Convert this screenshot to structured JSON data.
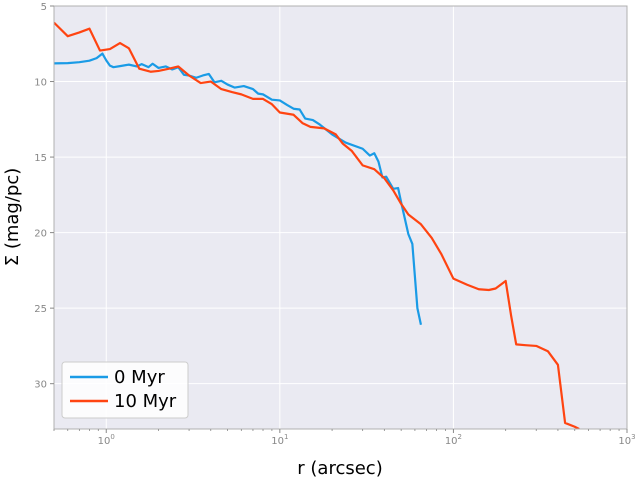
{
  "chart_data": {
    "type": "line",
    "xlabel": "r (arcsec)",
    "ylabel": "Σ (mag/pc)",
    "xscale": "log",
    "yaxis_inverted": true,
    "xlim": [
      0.5,
      1000
    ],
    "ylim": [
      33,
      5
    ],
    "grid": true,
    "background": "#EAEAF2",
    "legend_position": "lower-left",
    "x_tick_labels": [
      {
        "base": "10",
        "exp": "0",
        "value": 1
      },
      {
        "base": "10",
        "exp": "1",
        "value": 10
      },
      {
        "base": "10",
        "exp": "2",
        "value": 100
      },
      {
        "base": "10",
        "exp": "3",
        "value": 1000
      }
    ],
    "y_ticks": [
      5,
      10,
      15,
      20,
      25,
      30
    ],
    "series": [
      {
        "name": "0 Myr",
        "color": "#1A9BE6",
        "points": [
          [
            0.5,
            8.8
          ],
          [
            0.6,
            8.78
          ],
          [
            0.7,
            8.72
          ],
          [
            0.8,
            8.62
          ],
          [
            0.88,
            8.45
          ],
          [
            0.95,
            8.15
          ],
          [
            1.0,
            8.6
          ],
          [
            1.05,
            8.95
          ],
          [
            1.1,
            9.05
          ],
          [
            1.2,
            8.98
          ],
          [
            1.35,
            8.88
          ],
          [
            1.5,
            9.0
          ],
          [
            1.6,
            8.85
          ],
          [
            1.75,
            9.05
          ],
          [
            1.85,
            8.82
          ],
          [
            2.0,
            9.1
          ],
          [
            2.2,
            9.0
          ],
          [
            2.4,
            9.2
          ],
          [
            2.6,
            9.05
          ],
          [
            2.8,
            9.55
          ],
          [
            3.0,
            9.6
          ],
          [
            3.3,
            9.75
          ],
          [
            3.6,
            9.6
          ],
          [
            3.9,
            9.5
          ],
          [
            4.2,
            10.05
          ],
          [
            4.6,
            9.95
          ],
          [
            5.0,
            10.2
          ],
          [
            5.5,
            10.4
          ],
          [
            6.2,
            10.3
          ],
          [
            7.0,
            10.5
          ],
          [
            7.5,
            10.8
          ],
          [
            8.0,
            10.85
          ],
          [
            9.0,
            11.2
          ],
          [
            10.0,
            11.25
          ],
          [
            11.0,
            11.55
          ],
          [
            12.0,
            11.8
          ],
          [
            13.0,
            11.85
          ],
          [
            14.0,
            12.45
          ],
          [
            15.5,
            12.55
          ],
          [
            17.0,
            12.85
          ],
          [
            20.0,
            13.5
          ],
          [
            24.0,
            14.05
          ],
          [
            30.0,
            14.45
          ],
          [
            33.0,
            14.9
          ],
          [
            35.0,
            14.75
          ],
          [
            37.0,
            15.3
          ],
          [
            39.0,
            16.35
          ],
          [
            41.0,
            16.3
          ],
          [
            45.0,
            17.1
          ],
          [
            48.0,
            17.05
          ],
          [
            50.0,
            18.0
          ],
          [
            55.0,
            20.1
          ],
          [
            58.0,
            20.75
          ],
          [
            62.0,
            25.0
          ],
          [
            65.0,
            26.1
          ]
        ]
      },
      {
        "name": "10 Myr",
        "color": "#FF4411",
        "points": [
          [
            0.5,
            6.1
          ],
          [
            0.6,
            7.0
          ],
          [
            0.7,
            6.75
          ],
          [
            0.8,
            6.5
          ],
          [
            0.92,
            7.95
          ],
          [
            1.05,
            7.85
          ],
          [
            1.2,
            7.45
          ],
          [
            1.35,
            7.8
          ],
          [
            1.55,
            9.15
          ],
          [
            1.8,
            9.35
          ],
          [
            2.0,
            9.3
          ],
          [
            2.3,
            9.15
          ],
          [
            2.6,
            9.0
          ],
          [
            3.0,
            9.6
          ],
          [
            3.5,
            10.1
          ],
          [
            4.0,
            10.0
          ],
          [
            4.6,
            10.5
          ],
          [
            5.3,
            10.7
          ],
          [
            6.0,
            10.85
          ],
          [
            7.0,
            11.15
          ],
          [
            8.0,
            11.15
          ],
          [
            9.0,
            11.5
          ],
          [
            10.0,
            12.05
          ],
          [
            12.0,
            12.2
          ],
          [
            13.5,
            12.75
          ],
          [
            15.0,
            13.0
          ],
          [
            18.0,
            13.1
          ],
          [
            21.0,
            13.5
          ],
          [
            23.0,
            14.1
          ],
          [
            26.0,
            14.6
          ],
          [
            30.0,
            15.55
          ],
          [
            35.0,
            15.8
          ],
          [
            40.0,
            16.4
          ],
          [
            45.0,
            17.2
          ],
          [
            50.0,
            18.1
          ],
          [
            55.0,
            18.8
          ],
          [
            65.0,
            19.45
          ],
          [
            75.0,
            20.35
          ],
          [
            85.0,
            21.4
          ],
          [
            100.0,
            23.05
          ],
          [
            120.0,
            23.45
          ],
          [
            140.0,
            23.75
          ],
          [
            160.0,
            23.8
          ],
          [
            175.0,
            23.7
          ],
          [
            200.0,
            23.2
          ],
          [
            215.0,
            25.5
          ],
          [
            230.0,
            27.4
          ],
          [
            260.0,
            27.45
          ],
          [
            300.0,
            27.5
          ],
          [
            350.0,
            27.85
          ],
          [
            400.0,
            28.75
          ],
          [
            440.0,
            32.6
          ],
          [
            500.0,
            32.85
          ],
          [
            530.0,
            33.0
          ]
        ]
      }
    ]
  }
}
